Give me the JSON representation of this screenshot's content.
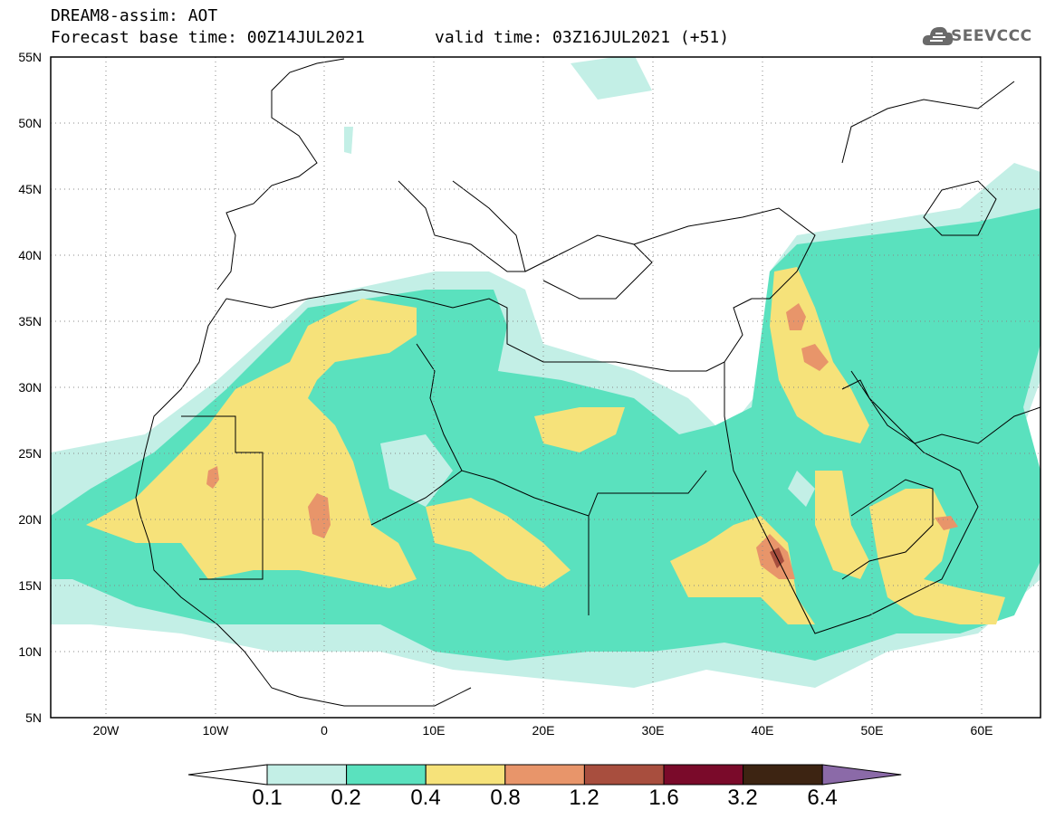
{
  "header": {
    "title_line1": "DREAM8-assim: AOT",
    "title_line2": "Forecast base time: 00Z14JUL2021",
    "valid_time": "valid time: 03Z16JUL2021 (+51)",
    "logo_text": "SEEVCCC"
  },
  "map": {
    "variable": "AOT",
    "lon_range": [
      -25,
      65
    ],
    "lat_range": [
      5,
      55
    ],
    "lat_labels": [
      "55N",
      "50N",
      "45N",
      "40N",
      "35N",
      "30N",
      "25N",
      "20N",
      "15N",
      "10N",
      "5N"
    ],
    "lon_labels": [
      "20W",
      "10W",
      "0",
      "10E",
      "20E",
      "30E",
      "40E",
      "50E",
      "60E"
    ],
    "grid": "dotted"
  },
  "colorbar": {
    "levels": [
      "0.1",
      "0.2",
      "0.4",
      "0.8",
      "1.2",
      "1.6",
      "3.2",
      "6.4"
    ],
    "colors": [
      "#ffffff",
      "#c3efe6",
      "#5ae1be",
      "#f6e27a",
      "#e8956a",
      "#a84e3e",
      "#7a0a2a",
      "#3d2412",
      "#8b6aa8"
    ]
  }
}
